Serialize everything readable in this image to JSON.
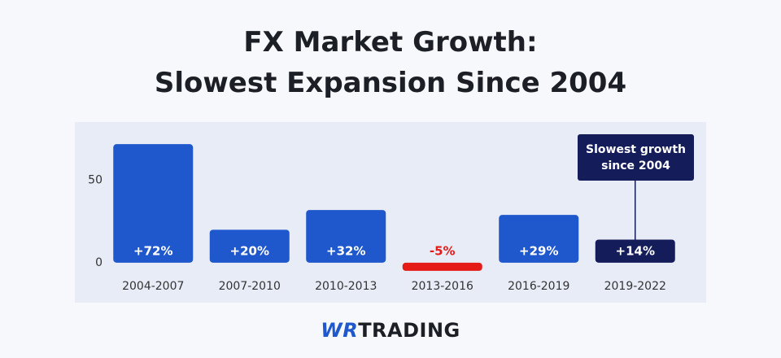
{
  "chart_data": {
    "type": "bar",
    "title": "FX Market Growth:",
    "subtitle": "Slowest Expansion Since 2004",
    "categories": [
      "2004-2007",
      "2007-2010",
      "2010-2013",
      "2013-2016",
      "2016-2019",
      "2019-2022"
    ],
    "values": [
      72,
      20,
      32,
      -5,
      29,
      14
    ],
    "value_labels": [
      "+72%",
      "+20%",
      "+32%",
      "-5%",
      "+29%",
      "+14%"
    ],
    "colors": [
      "#1f57cc",
      "#1f57cc",
      "#1f57cc",
      "#e41b17",
      "#1f57cc",
      "#141c5a"
    ],
    "ylim": [
      -8,
      80
    ],
    "yticks": [
      0,
      50
    ],
    "grid": false,
    "annotation": "Slowest growth since 2004"
  },
  "footer": {
    "mark": "WR",
    "name": "TRADING"
  }
}
